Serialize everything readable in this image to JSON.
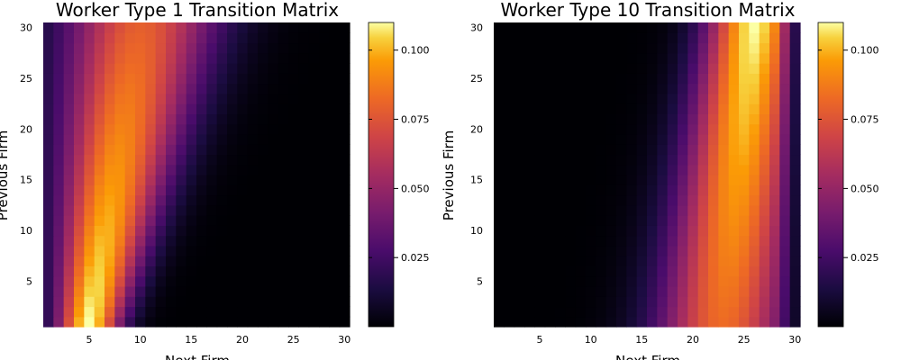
{
  "chart_data": [
    {
      "type": "heatmap",
      "title": "Worker Type 1 Transition Matrix",
      "xlabel": "Next Firm",
      "ylabel": "Previous Firm",
      "x": {
        "min": 1,
        "max": 30,
        "ticks": [
          5,
          10,
          15,
          20,
          25,
          30
        ]
      },
      "y": {
        "min": 1,
        "max": 30,
        "ticks": [
          5,
          10,
          15,
          20,
          25,
          30
        ]
      },
      "model": {
        "peak_next_firm_at_prev_1": 5,
        "peak_next_firm_at_prev_30": 10,
        "spread_at_prev_1": 2.2,
        "spread_at_prev_30": 5.2,
        "max_at_prev_1": 0.11,
        "max_at_prev_30": 0.079
      },
      "colorbar": {
        "min": 0.0,
        "max": 0.11,
        "ticks": [
          0.025,
          0.05,
          0.075,
          0.1
        ],
        "tick_labels": [
          "0.025",
          "0.050",
          "0.075",
          "0.100"
        ],
        "colormap": "inferno"
      }
    },
    {
      "type": "heatmap",
      "title": "Worker Type 10 Transition Matrix",
      "xlabel": "Next Firm",
      "ylabel": "Previous Firm",
      "x": {
        "min": 1,
        "max": 30,
        "ticks": [
          5,
          10,
          15,
          20,
          25,
          30
        ]
      },
      "y": {
        "min": 1,
        "max": 30,
        "ticks": [
          5,
          10,
          15,
          20,
          25,
          30
        ]
      },
      "model": {
        "peak_next_firm_at_prev_1": 23,
        "peak_next_firm_at_prev_30": 26,
        "spread_at_prev_1": 4.5,
        "spread_at_prev_30": 3.2,
        "max_at_prev_1": 0.083,
        "max_at_prev_30": 0.11,
        "right_edge_taper": true
      },
      "colorbar": {
        "min": 0.0,
        "max": 0.11,
        "ticks": [
          0.025,
          0.05,
          0.075,
          0.1
        ],
        "tick_labels": [
          "0.025",
          "0.050",
          "0.075",
          "0.100"
        ],
        "colormap": "inferno"
      }
    }
  ]
}
